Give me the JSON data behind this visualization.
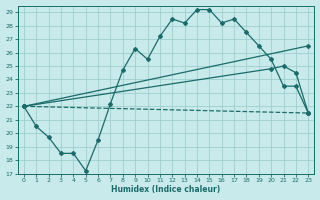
{
  "xlabel": "Humidex (Indice chaleur)",
  "bg_color": "#c8eaea",
  "grid_color": "#9fcece",
  "line_color": "#1a6b6b",
  "xlim": [
    -0.5,
    23.5
  ],
  "ylim": [
    17,
    29.5
  ],
  "xticks": [
    0,
    1,
    2,
    3,
    4,
    5,
    6,
    7,
    8,
    9,
    10,
    11,
    12,
    13,
    14,
    15,
    16,
    17,
    18,
    19,
    20,
    21,
    22,
    23
  ],
  "yticks": [
    17,
    18,
    19,
    20,
    21,
    22,
    23,
    24,
    25,
    26,
    27,
    28,
    29
  ],
  "line1_x": [
    0,
    1,
    2,
    3,
    4,
    5,
    6,
    7,
    8,
    9,
    10,
    11,
    12,
    13,
    14,
    15,
    16,
    17,
    18,
    19,
    20,
    21,
    22,
    23
  ],
  "line1_y": [
    22,
    20.5,
    19.7,
    18.5,
    18.5,
    17.2,
    19.5,
    22.2,
    24.7,
    26.3,
    25.5,
    27.2,
    28.5,
    28.2,
    29.2,
    29.2,
    28.2,
    28.5,
    27.5,
    26.5,
    25.5,
    23.5,
    23.5,
    21.5
  ],
  "line2_x": [
    0,
    23
  ],
  "line2_y": [
    22,
    26.5
  ],
  "line3_x": [
    0,
    20,
    21,
    22,
    23
  ],
  "line3_y": [
    22,
    24.8,
    25.0,
    24.5,
    21.5
  ],
  "line4_x": [
    0,
    23
  ],
  "line4_y": [
    22,
    21.5
  ]
}
